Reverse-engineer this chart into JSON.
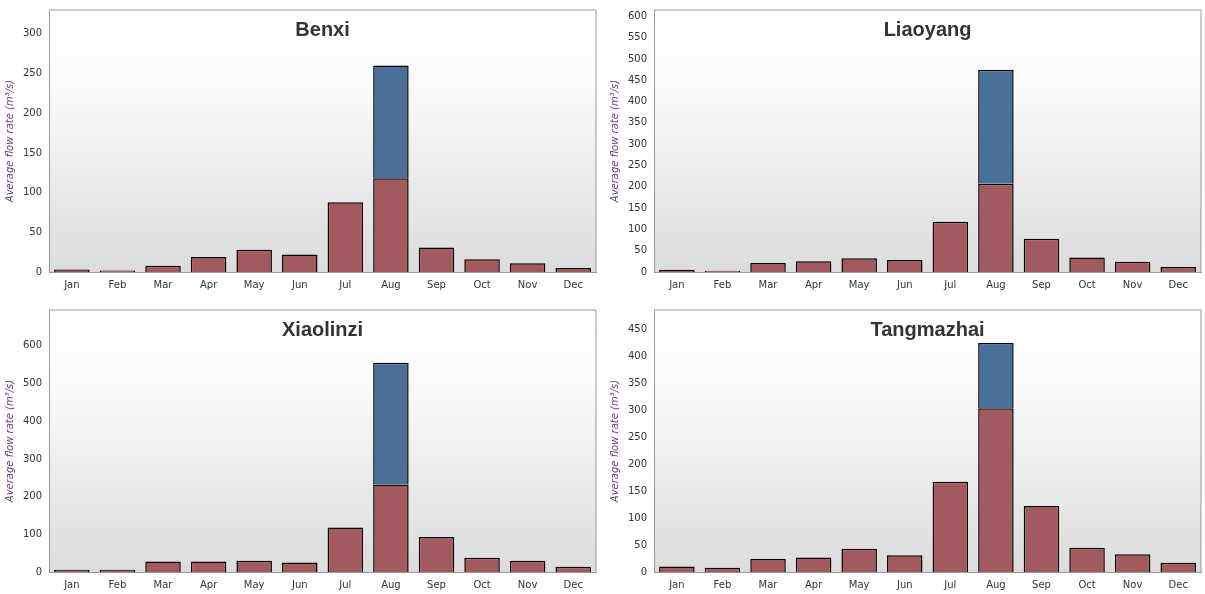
{
  "chart_data": [
    {
      "type": "bar",
      "title": "Benxi",
      "ylabel": "Average flow rate (m³/s)",
      "stacked": true,
      "categories": [
        "Jan",
        "Feb",
        "Mar",
        "Apr",
        "May",
        "Jun",
        "Jul",
        "Aug",
        "Sep",
        "Oct",
        "Nov",
        "Dec"
      ],
      "series": [
        {
          "color": "#a35a5e",
          "values": [
            3,
            2,
            8,
            19,
            28,
            22,
            88,
            118,
            31,
            16,
            11,
            5
          ]
        },
        {
          "color": "#4a6f98",
          "values": [
            null,
            null,
            null,
            null,
            null,
            null,
            null,
            142,
            null,
            null,
            null,
            null
          ]
        }
      ],
      "ylim": [
        0,
        330
      ],
      "yticks": [
        0,
        50,
        100,
        150,
        200,
        250,
        300
      ],
      "grid": false,
      "legend": false
    },
    {
      "type": "bar",
      "title": "Liaoyang",
      "ylabel": "Average flow rate (m³/s)",
      "stacked": true,
      "categories": [
        "Jan",
        "Feb",
        "Mar",
        "Apr",
        "May",
        "Jun",
        "Jul",
        "Aug",
        "Sep",
        "Oct",
        "Nov",
        "Dec"
      ],
      "series": [
        {
          "color": "#a35a5e",
          "values": [
            5,
            3,
            21,
            25,
            32,
            28,
            118,
            207,
            78,
            34,
            24,
            12
          ]
        },
        {
          "color": "#4a6f98",
          "values": [
            null,
            null,
            null,
            null,
            null,
            null,
            null,
            268,
            null,
            null,
            null,
            null
          ]
        }
      ],
      "ylim": [
        0,
        615
      ],
      "yticks": [
        0,
        50,
        100,
        150,
        200,
        250,
        300,
        350,
        400,
        450,
        500,
        550,
        600
      ],
      "grid": false,
      "legend": false
    },
    {
      "type": "bar",
      "title": "Xiaolinzi",
      "ylabel": "Average flow rate (m³/s)",
      "stacked": true,
      "categories": [
        "Jan",
        "Feb",
        "Mar",
        "Apr",
        "May",
        "Jun",
        "Jul",
        "Aug",
        "Sep",
        "Oct",
        "Nov",
        "Dec"
      ],
      "series": [
        {
          "color": "#a35a5e",
          "values": [
            6,
            6,
            28,
            28,
            30,
            25,
            118,
            232,
            93,
            38,
            30,
            14
          ]
        },
        {
          "color": "#4a6f98",
          "values": [
            null,
            null,
            null,
            null,
            null,
            null,
            null,
            323,
            null,
            null,
            null,
            null
          ]
        }
      ],
      "ylim": [
        0,
        695
      ],
      "yticks": [
        0,
        100,
        200,
        300,
        400,
        500,
        600
      ],
      "grid": false,
      "legend": false
    },
    {
      "type": "bar",
      "title": "Tangmazhai",
      "ylabel": "Average flow rate (m³/s)",
      "stacked": true,
      "categories": [
        "Jan",
        "Feb",
        "Mar",
        "Apr",
        "May",
        "Jun",
        "Jul",
        "Aug",
        "Sep",
        "Oct",
        "Nov",
        "Dec"
      ],
      "series": [
        {
          "color": "#a35a5e",
          "values": [
            10,
            8,
            24,
            27,
            43,
            31,
            167,
            303,
            122,
            45,
            33,
            17
          ]
        },
        {
          "color": "#4a6f98",
          "values": [
            null,
            null,
            null,
            null,
            null,
            null,
            null,
            121,
            null,
            null,
            null,
            null
          ]
        }
      ],
      "ylim": [
        0,
        485
      ],
      "yticks": [
        0,
        50,
        100,
        150,
        200,
        250,
        300,
        350,
        400,
        450
      ],
      "grid": false,
      "legend": false
    }
  ]
}
